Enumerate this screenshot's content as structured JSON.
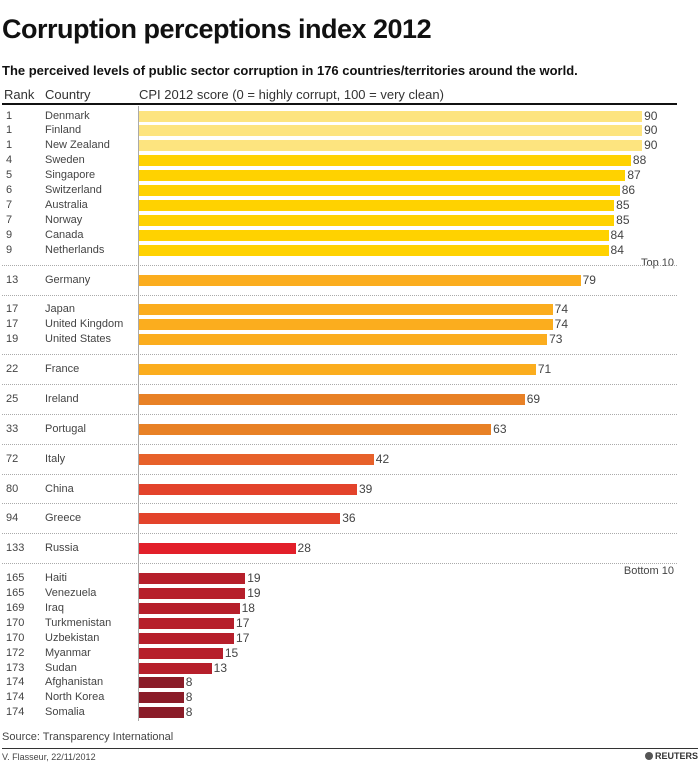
{
  "title": "Corruption perceptions index 2012",
  "subtitle": "The perceived levels of public sector corruption in 176 countries/territories around the world.",
  "source": "Source: Transparency International",
  "credit": "V. Flasseur, 22/11/2012",
  "logo": "REUTERS",
  "chart_data": {
    "type": "bar",
    "orientation": "horizontal",
    "headers": {
      "rank": "Rank",
      "country": "Country",
      "score": "CPI 2012 score (0 = highly corrupt, 100 = very clean)"
    },
    "xlim": [
      0,
      100
    ],
    "group_labels": {
      "top": "Top 10",
      "bottom": "Bottom 10"
    },
    "groups": [
      {
        "label_key": "top",
        "rows": [
          {
            "rank": "1",
            "country": "Denmark",
            "score": 90,
            "color": "#fde47f"
          },
          {
            "rank": "1",
            "country": "Finland",
            "score": 90,
            "color": "#fde47f"
          },
          {
            "rank": "1",
            "country": "New Zealand",
            "score": 90,
            "color": "#fde47f"
          },
          {
            "rank": "4",
            "country": "Sweden",
            "score": 88,
            "color": "#ffd200"
          },
          {
            "rank": "5",
            "country": "Singapore",
            "score": 87,
            "color": "#ffd200"
          },
          {
            "rank": "6",
            "country": "Switzerland",
            "score": 86,
            "color": "#ffd200"
          },
          {
            "rank": "7",
            "country": "Australia",
            "score": 85,
            "color": "#ffd200"
          },
          {
            "rank": "7",
            "country": "Norway",
            "score": 85,
            "color": "#ffd200"
          },
          {
            "rank": "9",
            "country": "Canada",
            "score": 84,
            "color": "#ffd200"
          },
          {
            "rank": "9",
            "country": "Netherlands",
            "score": 84,
            "color": "#ffd200"
          }
        ]
      },
      {
        "rows": [
          {
            "rank": "13",
            "country": "Germany",
            "score": 79,
            "color": "#fbad1e"
          }
        ]
      },
      {
        "rows": [
          {
            "rank": "17",
            "country": "Japan",
            "score": 74,
            "color": "#fbad1e"
          },
          {
            "rank": "17",
            "country": "United Kingdom",
            "score": 74,
            "color": "#fbad1e"
          },
          {
            "rank": "19",
            "country": "United States",
            "score": 73,
            "color": "#fbad1e"
          }
        ]
      },
      {
        "rows": [
          {
            "rank": "22",
            "country": "France",
            "score": 71,
            "color": "#fbad1e"
          }
        ]
      },
      {
        "rows": [
          {
            "rank": "25",
            "country": "Ireland",
            "score": 69,
            "color": "#e88126"
          }
        ]
      },
      {
        "rows": [
          {
            "rank": "33",
            "country": "Portugal",
            "score": 63,
            "color": "#e88126"
          }
        ]
      },
      {
        "rows": [
          {
            "rank": "72",
            "country": "Italy",
            "score": 42,
            "color": "#e7612a"
          }
        ]
      },
      {
        "rows": [
          {
            "rank": "80",
            "country": "China",
            "score": 39,
            "color": "#e3432b"
          }
        ]
      },
      {
        "rows": [
          {
            "rank": "94",
            "country": "Greece",
            "score": 36,
            "color": "#e3432b"
          }
        ]
      },
      {
        "rows": [
          {
            "rank": "133",
            "country": "Russia",
            "score": 28,
            "color": "#e21f2a"
          }
        ]
      },
      {
        "label_key": "bottom",
        "rows": [
          {
            "rank": "165",
            "country": "Haiti",
            "score": 19,
            "color": "#b61f2b"
          },
          {
            "rank": "165",
            "country": "Venezuela",
            "score": 19,
            "color": "#b61f2b"
          },
          {
            "rank": "169",
            "country": "Iraq",
            "score": 18,
            "color": "#b61f2b"
          },
          {
            "rank": "170",
            "country": "Turkmenistan",
            "score": 17,
            "color": "#b61f2b"
          },
          {
            "rank": "170",
            "country": "Uzbekistan",
            "score": 17,
            "color": "#b61f2b"
          },
          {
            "rank": "172",
            "country": "Myanmar",
            "score": 15,
            "color": "#b61f2b"
          },
          {
            "rank": "173",
            "country": "Sudan",
            "score": 13,
            "color": "#b61f2b"
          },
          {
            "rank": "174",
            "country": "Afghanistan",
            "score": 8,
            "color": "#8a1c28"
          },
          {
            "rank": "174",
            "country": "North Korea",
            "score": 8,
            "color": "#8a1c28"
          },
          {
            "rank": "174",
            "country": "Somalia",
            "score": 8,
            "color": "#8a1c28"
          }
        ]
      }
    ]
  }
}
